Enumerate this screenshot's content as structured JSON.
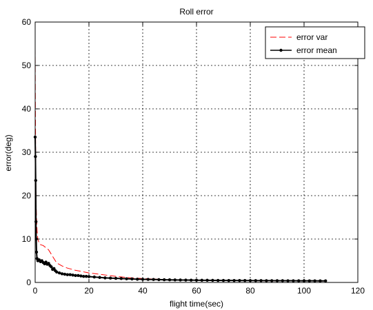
{
  "chart_data": {
    "type": "line",
    "title": "Roll error",
    "xlabel": "flight time(sec)",
    "ylabel": "error(deg)",
    "xlim": [
      0,
      120
    ],
    "ylim": [
      0,
      60
    ],
    "xticks": [
      0,
      20,
      40,
      60,
      80,
      100,
      120
    ],
    "yticks": [
      0,
      10,
      20,
      30,
      40,
      50,
      60
    ],
    "grid": true,
    "grid_style": "dotted",
    "legend_position": "top-right",
    "series": [
      {
        "name": "error var",
        "color": "#ff0000",
        "style": "dashed",
        "marker": "none",
        "x": [
          0,
          0.1,
          0.2,
          0.3,
          0.5,
          0.7,
          1.0,
          1.5,
          2,
          3,
          4,
          5,
          6,
          7,
          8,
          10,
          12,
          15,
          20,
          25,
          30,
          35,
          40,
          50,
          60,
          70,
          80,
          90,
          100,
          108
        ],
        "y": [
          54,
          40,
          28,
          20,
          15,
          12,
          10,
          9,
          8.7,
          8.5,
          8.0,
          7.5,
          6.5,
          5.5,
          4.5,
          3.8,
          3.3,
          2.8,
          2.2,
          1.8,
          1.4,
          1.1,
          0.9,
          0.6,
          0.5,
          0.45,
          0.4,
          0.35,
          0.32,
          0.3
        ]
      },
      {
        "name": "error mean",
        "color": "#000000",
        "style": "solid",
        "marker": "dot",
        "x": [
          0,
          0.1,
          0.2,
          0.3,
          0.4,
          0.5,
          0.7,
          1.0,
          1.5,
          2,
          2.5,
          3,
          3.5,
          4,
          4.5,
          5,
          5.5,
          6,
          6.5,
          7,
          7.5,
          8,
          9,
          10,
          11,
          12,
          13,
          14,
          15,
          16,
          17,
          18,
          19,
          20,
          22,
          24,
          26,
          28,
          30,
          32,
          34,
          36,
          38,
          40,
          42,
          44,
          46,
          48,
          50,
          52,
          54,
          56,
          58,
          60,
          62,
          64,
          66,
          68,
          70,
          72,
          74,
          76,
          78,
          80,
          82,
          84,
          86,
          88,
          90,
          92,
          94,
          96,
          98,
          100,
          102,
          104,
          106,
          108
        ],
        "y": [
          33.5,
          29,
          23.5,
          14,
          10,
          7,
          5.5,
          5.0,
          5.2,
          4.8,
          5.0,
          4.6,
          4.3,
          4.7,
          4.2,
          4.4,
          3.9,
          3.6,
          3.0,
          3.2,
          2.7,
          2.4,
          2.2,
          2.0,
          1.9,
          1.8,
          1.8,
          1.7,
          1.6,
          1.6,
          1.5,
          1.4,
          1.4,
          1.35,
          1.25,
          1.15,
          1.05,
          1.0,
          0.95,
          0.9,
          0.85,
          0.8,
          0.75,
          0.72,
          0.7,
          0.68,
          0.65,
          0.62,
          0.6,
          0.58,
          0.56,
          0.55,
          0.53,
          0.52,
          0.5,
          0.5,
          0.48,
          0.47,
          0.46,
          0.45,
          0.45,
          0.44,
          0.44,
          0.43,
          0.42,
          0.42,
          0.41,
          0.41,
          0.4,
          0.4,
          0.39,
          0.39,
          0.38,
          0.38,
          0.37,
          0.37,
          0.36,
          0.36
        ]
      }
    ]
  }
}
